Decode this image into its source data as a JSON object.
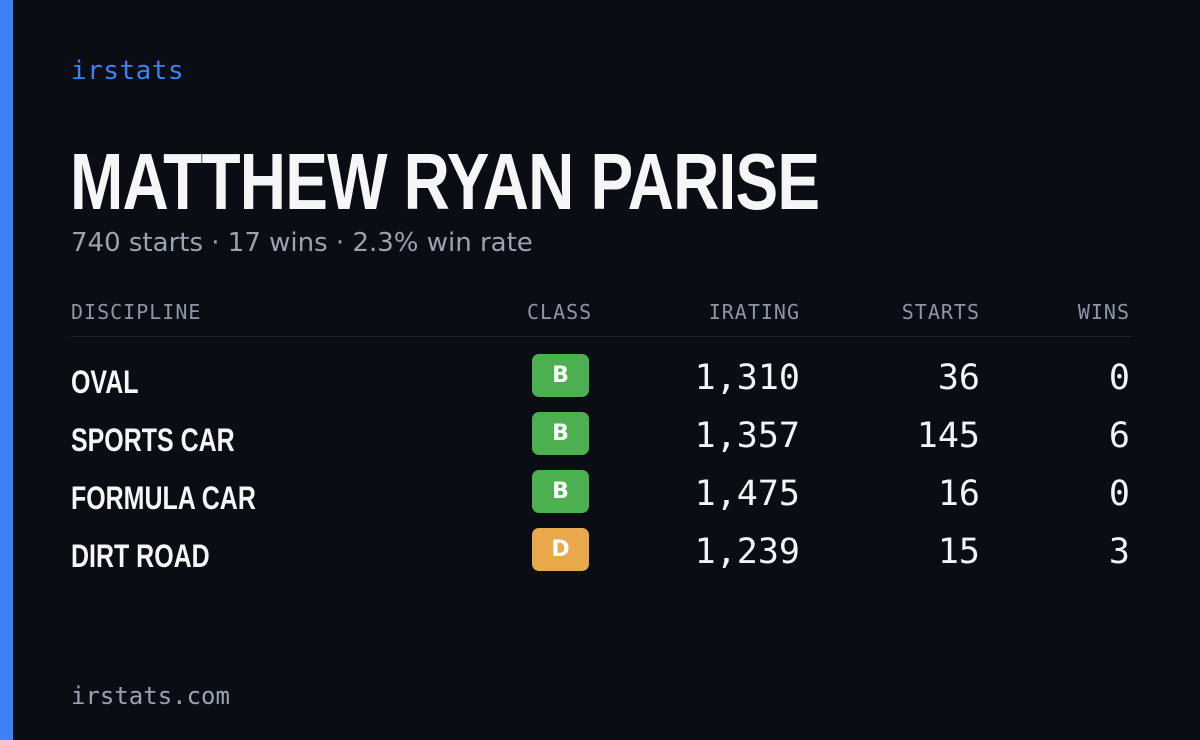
{
  "brand": "irstats",
  "driver": {
    "name": "MATTHEW RYAN PARISE",
    "summary": "740 starts · 17 wins · 2.3% win rate"
  },
  "table": {
    "headers": {
      "discipline": "DISCIPLINE",
      "class": "CLASS",
      "irating": "IRATING",
      "starts": "STARTS",
      "wins": "WINS"
    },
    "rows": [
      {
        "discipline": "OVAL",
        "class": "B",
        "class_color": "#4caf50",
        "irating": "1,310",
        "starts": "36",
        "wins": "0"
      },
      {
        "discipline": "SPORTS CAR",
        "class": "B",
        "class_color": "#4caf50",
        "irating": "1,357",
        "starts": "145",
        "wins": "6"
      },
      {
        "discipline": "FORMULA CAR",
        "class": "B",
        "class_color": "#4caf50",
        "irating": "1,475",
        "starts": "16",
        "wins": "0"
      },
      {
        "discipline": "DIRT ROAD",
        "class": "D",
        "class_color": "#e8a94c",
        "irating": "1,239",
        "starts": "15",
        "wins": "3"
      }
    ]
  },
  "footer": "irstats.com",
  "colors": {
    "accent": "#3b82f6",
    "background": "#0a0d14"
  }
}
